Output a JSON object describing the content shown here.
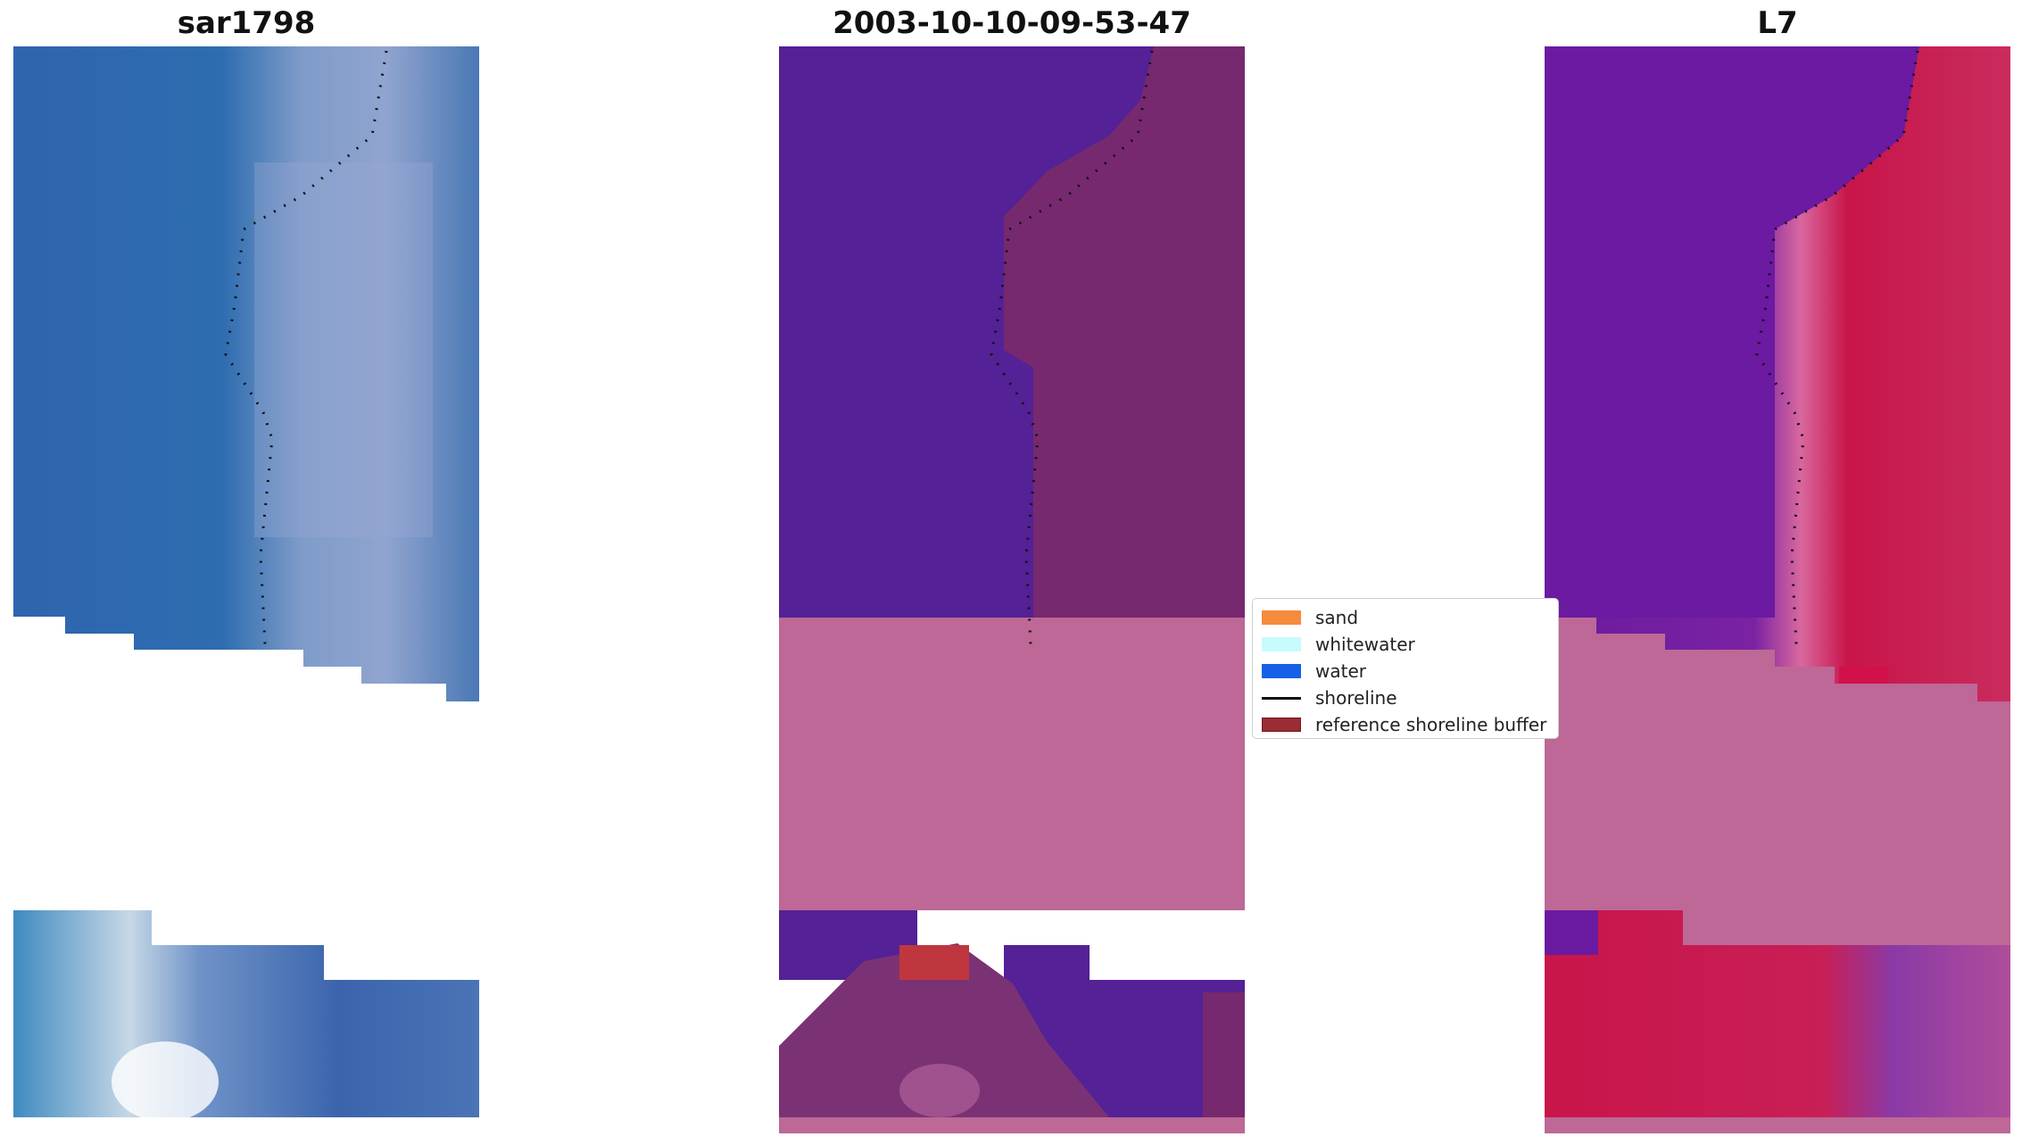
{
  "panels": {
    "rgb": {
      "title": "sar1798"
    },
    "classified": {
      "title": "2003-10-10-09-53-47"
    },
    "index": {
      "title": "L7"
    }
  },
  "legend": {
    "items": [
      {
        "label": "sand",
        "color": "#f58b3c",
        "kind": "patch"
      },
      {
        "label": "whitewater",
        "color": "#c8fbfb",
        "kind": "patch"
      },
      {
        "label": "water",
        "color": "#1560e6",
        "kind": "patch"
      },
      {
        "label": "shoreline",
        "color": "#111111",
        "kind": "line"
      },
      {
        "label": "reference shoreline buffer",
        "color": "#9a2c34",
        "kind": "buffer"
      }
    ]
  },
  "colors": {
    "rgb_water": "#2f67ad",
    "rgb_sand": "#8a9ec7",
    "classified_water": "#542196",
    "classified_land": "#76296e",
    "nodata_band": "#bd6896",
    "index_low": "#6a1aa0",
    "index_high": "#c8154a",
    "buffer": "#c0363f"
  }
}
